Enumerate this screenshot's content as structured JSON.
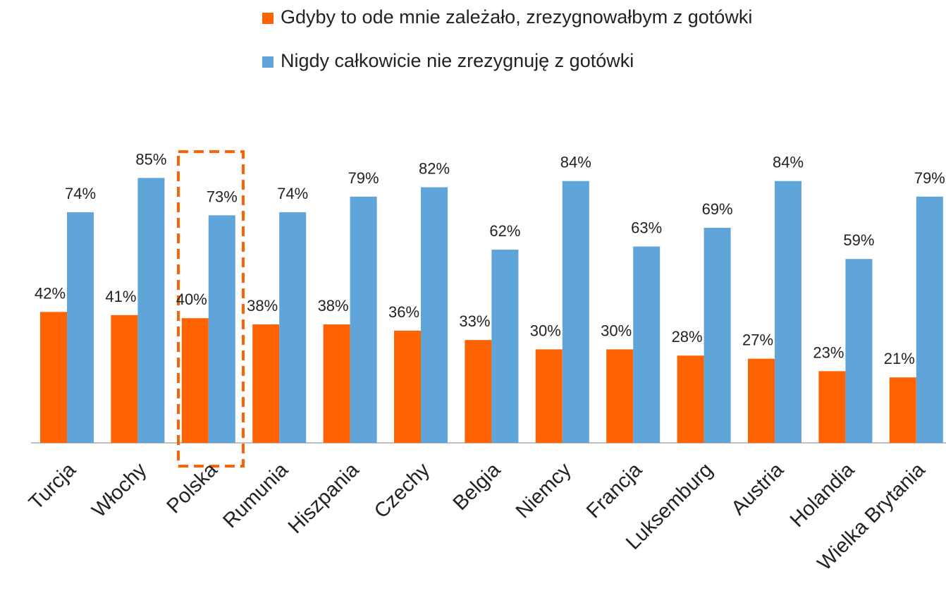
{
  "chart_data": {
    "type": "bar",
    "categories": [
      "Turcja",
      "Włochy",
      "Polska",
      "Rumunia",
      "Hiszpania",
      "Czechy",
      "Belgia",
      "Niemcy",
      "Francja",
      "Luksemburg",
      "Austria",
      "Holandia",
      "Wielka Brytania"
    ],
    "series": [
      {
        "name": "Gdyby to ode mnie zależało, zrezygnowałbym z gotówki",
        "color": "#ff6200",
        "values": [
          42,
          41,
          40,
          38,
          38,
          36,
          33,
          30,
          30,
          28,
          27,
          23,
          21
        ],
        "value_labels": [
          "42%",
          "41%",
          "40%",
          "38%",
          "38%",
          "36%",
          "33%",
          "30%",
          "30%",
          "28%",
          "27%",
          "23%",
          "21%"
        ]
      },
      {
        "name": "Nigdy całkowicie nie zrezygnuję z gotówki",
        "color": "#60a5da",
        "values": [
          74,
          85,
          73,
          74,
          79,
          82,
          62,
          84,
          63,
          69,
          84,
          59,
          79
        ],
        "value_labels": [
          "74%",
          "85%",
          "73%",
          "74%",
          "79%",
          "82%",
          "62%",
          "84%",
          "63%",
          "69%",
          "84%",
          "59%",
          "79%"
        ]
      }
    ]
  }
}
